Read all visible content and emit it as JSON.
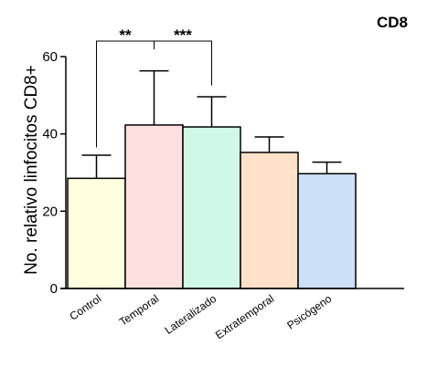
{
  "chart_data": {
    "type": "bar",
    "title": "CD8",
    "ylabel": "No. relativo linfocitos CD8+",
    "xlabel": "",
    "ylim": [
      0,
      60
    ],
    "yticks": [
      0,
      20,
      40,
      60
    ],
    "categories": [
      "Control",
      "Temporal",
      "Lateralizado",
      "Extratemporal",
      "Psicógeno"
    ],
    "values": [
      28.5,
      42.3,
      41.8,
      35.2,
      29.7
    ],
    "errors": [
      6.0,
      14.0,
      7.8,
      4.0,
      3.0
    ],
    "bar_colors": [
      "#ffffe0",
      "#ffe0e0",
      "#d0f8e8",
      "#ffe0c8",
      "#cce0f8"
    ],
    "grid": false,
    "significance": [
      {
        "from": 0,
        "to": 1,
        "label": "**"
      },
      {
        "from": 1,
        "to": 2,
        "label": "***"
      }
    ]
  }
}
